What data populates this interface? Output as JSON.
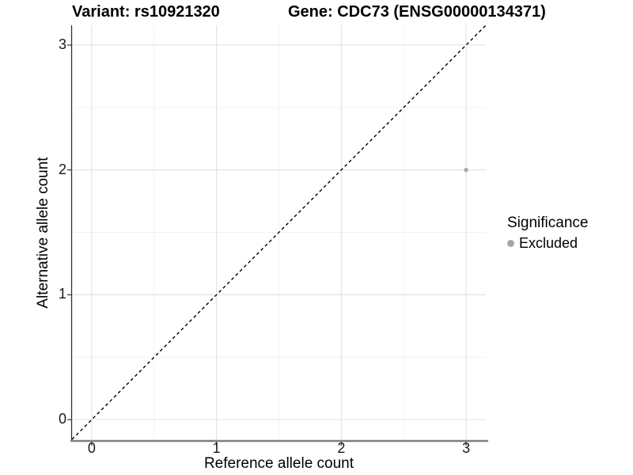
{
  "chart_data": {
    "type": "scatter",
    "titles": {
      "left": "Variant: rs10921320",
      "right": "Gene: CDC73 (ENSG00000134371)"
    },
    "xlabel": "Reference allele count",
    "ylabel": "Alternative allele count",
    "xlim": [
      -0.158,
      3.158
    ],
    "ylim": [
      -0.158,
      3.158
    ],
    "x_ticks": [
      0,
      1,
      2,
      3
    ],
    "y_ticks": [
      0,
      1,
      2,
      3
    ],
    "grid": {
      "major": true,
      "minor": true
    },
    "reference_line": {
      "equation": "y = x",
      "style": "dashed",
      "from": [
        -0.158,
        -0.158
      ],
      "to": [
        3.158,
        3.158
      ],
      "color": "#000000"
    },
    "series": [
      {
        "name": "Excluded",
        "color": "#A6A6A6",
        "point_radius": 2.6,
        "points": [
          {
            "x": 3,
            "y": 2
          }
        ]
      }
    ],
    "legend": {
      "title": "Significance",
      "position": "right",
      "items": [
        {
          "label": "Excluded",
          "color": "#A6A6A6"
        }
      ]
    },
    "colors": {
      "background": "#FFFFFF",
      "grid_major": "#E4E4E4",
      "grid_minor": "#F2F2F2",
      "axis_line_x": "#7F7F7F",
      "axis_line_y": "#333333",
      "tick": "#333333",
      "text": "#000000"
    }
  }
}
